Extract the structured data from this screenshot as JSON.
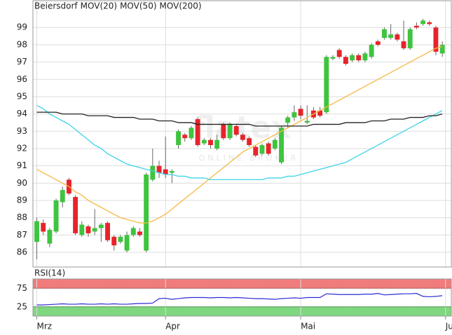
{
  "chart_data": {
    "type": "candlestick",
    "watermark": {
      "brand": "flatex",
      "tagline": "ONLINE BROKER"
    },
    "xlim": [
      -0.6,
      64.4
    ],
    "xticks": [
      {
        "value": 0,
        "label": "Mrz"
      },
      {
        "value": 20,
        "label": "Apr"
      },
      {
        "value": 41,
        "label": "Mai"
      },
      {
        "value": 63.5,
        "label": "Jun"
      }
    ],
    "ylim": [
      85.15,
      100.55
    ],
    "yticks": [
      86,
      87,
      88,
      89,
      90,
      91,
      92,
      93,
      94,
      95,
      96,
      97,
      98,
      99
    ],
    "grid": true,
    "series": [
      {
        "name": "Beiersdorf",
        "type": "candlestick",
        "color": "#e8232a",
        "up_color": "#3ec43e",
        "down_color": "#e8232a",
        "open": [
          86.6,
          87.7,
          86.5,
          87.2,
          88.9,
          90.2,
          89.2,
          87.0,
          87.5,
          87.2,
          87.4,
          87.7,
          86.9,
          86.6,
          86.1,
          87.0,
          87.2,
          86.1,
          90.2,
          91.0,
          90.8,
          90.6,
          92.2,
          92.8,
          92.6,
          93.7,
          92.3,
          92.5,
          92.0,
          93.4,
          92.6,
          93.3,
          92.8,
          92.6,
          92.1,
          91.7,
          92.3,
          92.0,
          91.2,
          93.5,
          93.8,
          94.3,
          93.5,
          94.2,
          94.2,
          94.1,
          97.2,
          97.7,
          97.3,
          97.1,
          97.4,
          97.1,
          97.3,
          98.2,
          98.4,
          98.4,
          98.6,
          98.2,
          97.8,
          99.1,
          99.2,
          99.3,
          99.0,
          97.5
        ],
        "high": [
          88.0,
          87.9,
          87.4,
          89.1,
          89.8,
          90.3,
          89.3,
          87.8,
          87.6,
          88.5,
          87.7,
          87.8,
          87.0,
          87.0,
          87.2,
          87.5,
          87.4,
          90.6,
          92.0,
          91.3,
          92.7,
          90.8,
          93.1,
          92.9,
          93.3,
          93.8,
          92.6,
          92.6,
          92.8,
          93.5,
          93.5,
          93.4,
          92.9,
          92.7,
          92.2,
          92.3,
          92.4,
          92.6,
          93.3,
          93.9,
          94.5,
          94.5,
          94.5,
          94.4,
          94.4,
          97.4,
          97.4,
          97.8,
          97.4,
          97.5,
          97.5,
          97.6,
          98.1,
          98.3,
          99.0,
          99.2,
          98.7,
          99.4,
          99.0,
          99.3,
          99.5,
          99.4,
          99.1,
          98.2
        ],
        "low": [
          85.6,
          87.0,
          86.3,
          87.1,
          88.6,
          89.3,
          87.0,
          86.9,
          86.9,
          87.0,
          86.6,
          86.6,
          86.1,
          86.5,
          86.0,
          86.9,
          86.9,
          86.0,
          90.1,
          90.3,
          90.3,
          90.0,
          92.0,
          92.4,
          92.5,
          92.1,
          92.2,
          92.0,
          91.9,
          92.5,
          92.5,
          92.7,
          92.4,
          92.1,
          91.5,
          91.6,
          91.6,
          91.9,
          91.1,
          93.2,
          93.6,
          93.7,
          93.4,
          93.7,
          93.8,
          94.0,
          97.1,
          97.2,
          96.8,
          97.0,
          97.0,
          97.0,
          97.2,
          97.9,
          98.3,
          98.3,
          98.2,
          97.7,
          97.7,
          98.9,
          99.1,
          99.1,
          97.4,
          97.3
        ],
        "close": [
          87.8,
          87.2,
          87.3,
          89.0,
          89.6,
          89.4,
          87.1,
          87.6,
          87.1,
          87.4,
          87.6,
          86.7,
          86.4,
          86.9,
          87.0,
          87.4,
          87.0,
          90.5,
          91.0,
          90.6,
          90.5,
          90.7,
          93.0,
          92.6,
          93.2,
          92.2,
          92.5,
          92.2,
          92.5,
          92.6,
          93.4,
          92.8,
          92.5,
          92.2,
          91.6,
          92.2,
          91.7,
          92.5,
          93.2,
          93.8,
          94.1,
          93.9,
          93.6,
          93.8,
          93.9,
          97.3,
          97.3,
          97.3,
          96.9,
          97.4,
          97.1,
          97.5,
          98.0,
          98.0,
          98.9,
          98.6,
          98.3,
          97.8,
          98.9,
          99.0,
          99.4,
          99.2,
          97.6,
          98.0
        ]
      },
      {
        "name": "MOV(20)",
        "type": "line",
        "color": "#f5b942",
        "values": [
          90.8,
          90.6,
          90.4,
          90.2,
          90.0,
          89.8,
          89.5,
          89.3,
          89.0,
          88.8,
          88.6,
          88.4,
          88.2,
          88.0,
          87.9,
          87.8,
          87.7,
          87.7,
          87.8,
          88.0,
          88.2,
          88.5,
          88.8,
          89.1,
          89.4,
          89.7,
          90.0,
          90.3,
          90.6,
          90.9,
          91.2,
          91.5,
          91.8,
          92.0,
          92.2,
          92.4,
          92.6,
          92.8,
          93.0,
          93.2,
          93.4,
          93.6,
          93.8,
          94.0,
          94.2,
          94.4,
          94.6,
          94.8,
          95.0,
          95.2,
          95.4,
          95.6,
          95.8,
          96.0,
          96.2,
          96.4,
          96.6,
          96.8,
          97.0,
          97.2,
          97.4,
          97.6,
          97.8,
          97.9
        ]
      },
      {
        "name": "MOV(50)",
        "type": "line",
        "color": "#3fd3e6",
        "values": [
          94.5,
          94.3,
          94.0,
          93.8,
          93.6,
          93.4,
          93.1,
          92.8,
          92.5,
          92.2,
          92.0,
          91.7,
          91.5,
          91.3,
          91.1,
          91.0,
          90.9,
          90.8,
          90.7,
          90.6,
          90.5,
          90.5,
          90.4,
          90.4,
          90.3,
          90.3,
          90.3,
          90.2,
          90.2,
          90.2,
          90.2,
          90.2,
          90.2,
          90.2,
          90.2,
          90.2,
          90.3,
          90.3,
          90.3,
          90.4,
          90.4,
          90.5,
          90.6,
          90.7,
          90.8,
          90.9,
          91.0,
          91.1,
          91.2,
          91.4,
          91.6,
          91.8,
          92.0,
          92.2,
          92.4,
          92.6,
          92.8,
          93.0,
          93.2,
          93.4,
          93.6,
          93.8,
          94.0,
          94.2
        ]
      },
      {
        "name": "MOV(200)",
        "type": "line",
        "color": "#222222",
        "values": [
          94.1,
          94.1,
          94.1,
          94.1,
          94.0,
          94.0,
          94.0,
          94.0,
          93.9,
          93.9,
          93.9,
          93.9,
          93.8,
          93.8,
          93.8,
          93.8,
          93.7,
          93.7,
          93.7,
          93.6,
          93.6,
          93.6,
          93.5,
          93.5,
          93.5,
          93.4,
          93.4,
          93.4,
          93.4,
          93.4,
          93.4,
          93.4,
          93.4,
          93.4,
          93.3,
          93.3,
          93.3,
          93.3,
          93.3,
          93.3,
          93.3,
          93.3,
          93.3,
          93.4,
          93.4,
          93.4,
          93.4,
          93.4,
          93.5,
          93.5,
          93.5,
          93.5,
          93.6,
          93.6,
          93.6,
          93.7,
          93.7,
          93.7,
          93.8,
          93.8,
          93.8,
          93.9,
          93.9,
          94.0
        ]
      }
    ],
    "rsi": {
      "name": "RSI(14)",
      "color": "#2b2bd6",
      "ylim": [
        0,
        100
      ],
      "yticks": [
        25,
        75
      ],
      "upper_band_color": "#f07c7c",
      "lower_band_color": "#7fd87f",
      "values": [
        30,
        30,
        31,
        32,
        33,
        32,
        32,
        33,
        32,
        32,
        33,
        32,
        33,
        32,
        32,
        33,
        34,
        34,
        35,
        47,
        48,
        45,
        47,
        49,
        50,
        50,
        50,
        49,
        50,
        50,
        49,
        50,
        49,
        48,
        47,
        47,
        46,
        45,
        47,
        48,
        49,
        48,
        50,
        50,
        50,
        60,
        59,
        58,
        58,
        58,
        58,
        59,
        59,
        61,
        57,
        58,
        59,
        60,
        60,
        61,
        53,
        52,
        53,
        55
      ]
    }
  }
}
